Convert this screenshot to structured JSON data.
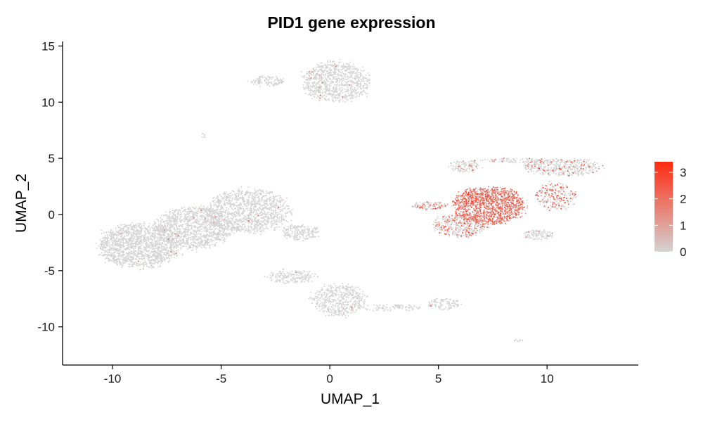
{
  "chart_data": {
    "type": "scatter",
    "title": "PID1 gene expression",
    "xlabel": "UMAP_1",
    "ylabel": "UMAP_2",
    "xlim": [
      -12.3,
      14.2
    ],
    "ylim": [
      -13.4,
      15.4
    ],
    "xticks": [
      -10,
      -5,
      0,
      5,
      10
    ],
    "yticks": [
      15,
      10,
      5,
      0,
      -5,
      -10
    ],
    "grid": false,
    "legend": {
      "position": "right",
      "type": "colorbar",
      "ticks": [
        0,
        1,
        2,
        3
      ],
      "range": [
        0,
        3.4
      ],
      "low_color": "#D3D3D3",
      "high_color": "#FF2A10"
    },
    "clusters": [
      {
        "cx": 0.3,
        "cy": 11.8,
        "rx": 1.5,
        "ry": 1.7,
        "n": 900,
        "expr": 0.02
      },
      {
        "cx": -2.9,
        "cy": 11.9,
        "rx": 0.8,
        "ry": 0.45,
        "n": 120,
        "expr": 0.0
      },
      {
        "cx": -5.8,
        "cy": 7.0,
        "rx": 0.12,
        "ry": 0.2,
        "n": 8,
        "expr": 0.0
      },
      {
        "cx": -8.8,
        "cy": -2.8,
        "rx": 1.8,
        "ry": 1.9,
        "n": 1500,
        "expr": 0.01
      },
      {
        "cx": -6.3,
        "cy": -1.2,
        "rx": 1.7,
        "ry": 1.8,
        "n": 1200,
        "expr": 0.01
      },
      {
        "cx": -3.8,
        "cy": 0.3,
        "rx": 1.9,
        "ry": 1.9,
        "n": 1200,
        "expr": 0.01
      },
      {
        "cx": -1.3,
        "cy": -1.6,
        "rx": 0.9,
        "ry": 0.7,
        "n": 200,
        "expr": 0.0
      },
      {
        "cx": 0.4,
        "cy": -7.6,
        "rx": 1.2,
        "ry": 1.4,
        "n": 500,
        "expr": 0.0
      },
      {
        "cx": -1.8,
        "cy": -5.5,
        "rx": 1.2,
        "ry": 0.6,
        "n": 180,
        "expr": 0.0
      },
      {
        "cx": 5.3,
        "cy": -8.0,
        "rx": 0.8,
        "ry": 0.5,
        "n": 110,
        "expr": 0.02
      },
      {
        "cx": 2.7,
        "cy": -8.3,
        "rx": 1.5,
        "ry": 0.3,
        "n": 100,
        "expr": 0.0
      },
      {
        "cx": 8.7,
        "cy": -11.2,
        "rx": 0.2,
        "ry": 0.12,
        "n": 10,
        "expr": 0.0
      },
      {
        "cx": 7.3,
        "cy": 0.8,
        "rx": 1.6,
        "ry": 1.6,
        "n": 1400,
        "expr": 1.6
      },
      {
        "cx": 6.0,
        "cy": -1.0,
        "rx": 1.2,
        "ry": 1.0,
        "n": 400,
        "expr": 0.8
      },
      {
        "cx": 4.6,
        "cy": 0.8,
        "rx": 0.8,
        "ry": 0.35,
        "n": 120,
        "expr": 0.6
      },
      {
        "cx": 6.2,
        "cy": 4.3,
        "rx": 0.7,
        "ry": 0.55,
        "n": 120,
        "expr": 0.15
      },
      {
        "cx": 10.7,
        "cy": 4.2,
        "rx": 1.8,
        "ry": 0.75,
        "n": 450,
        "expr": 0.25
      },
      {
        "cx": 10.4,
        "cy": 1.6,
        "rx": 0.9,
        "ry": 1.2,
        "n": 240,
        "expr": 0.8
      },
      {
        "cx": 9.6,
        "cy": -1.8,
        "rx": 0.7,
        "ry": 0.45,
        "n": 110,
        "expr": 0.05
      },
      {
        "cx": 8.6,
        "cy": 4.8,
        "rx": 1.6,
        "ry": 0.22,
        "n": 90,
        "expr": 0.2
      }
    ]
  }
}
